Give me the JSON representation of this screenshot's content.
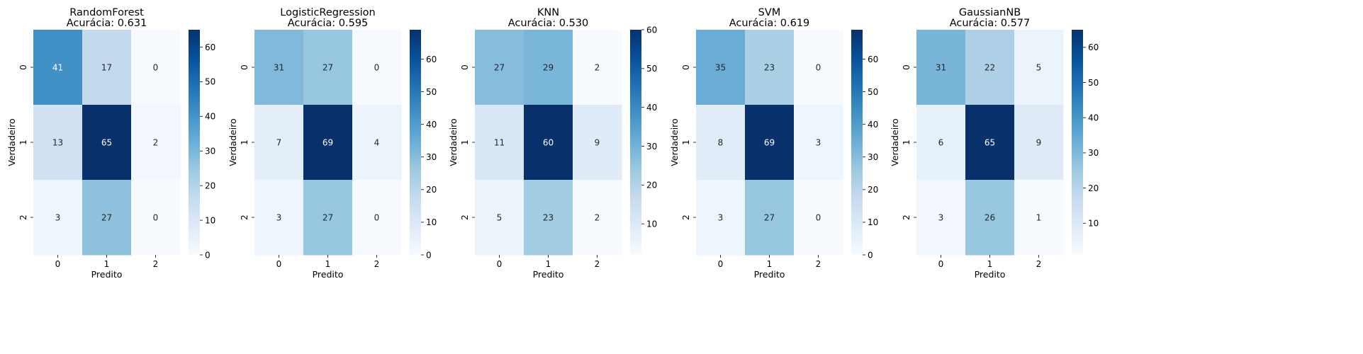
{
  "chart_data": [
    {
      "type": "heatmap",
      "title": "RandomForest",
      "subtitle": "Acurácia: 0.631",
      "xlabel": "Predito",
      "ylabel": "Verdadeiro",
      "x_ticks": [
        "0",
        "1",
        "2"
      ],
      "y_ticks": [
        "0",
        "1",
        "2"
      ],
      "matrix": [
        [
          41,
          17,
          0
        ],
        [
          13,
          65,
          2
        ],
        [
          3,
          27,
          0
        ]
      ],
      "colorbar": {
        "min": 0,
        "max": 65,
        "ticks": [
          0,
          10,
          20,
          30,
          40,
          50,
          60
        ]
      }
    },
    {
      "type": "heatmap",
      "title": "LogisticRegression",
      "subtitle": "Acurácia: 0.595",
      "xlabel": "Predito",
      "ylabel": "Verdadeiro",
      "x_ticks": [
        "0",
        "1",
        "2"
      ],
      "y_ticks": [
        "0",
        "1",
        "2"
      ],
      "matrix": [
        [
          31,
          27,
          0
        ],
        [
          7,
          69,
          4
        ],
        [
          3,
          27,
          0
        ]
      ],
      "colorbar": {
        "min": 0,
        "max": 69,
        "ticks": [
          0,
          10,
          20,
          30,
          40,
          50,
          60
        ]
      }
    },
    {
      "type": "heatmap",
      "title": "KNN",
      "subtitle": "Acurácia: 0.530",
      "xlabel": "Predito",
      "ylabel": "Verdadeiro",
      "x_ticks": [
        "0",
        "1",
        "2"
      ],
      "y_ticks": [
        "0",
        "1",
        "2"
      ],
      "matrix": [
        [
          27,
          29,
          2
        ],
        [
          11,
          60,
          9
        ],
        [
          5,
          23,
          2
        ]
      ],
      "colorbar": {
        "min": 2,
        "max": 60,
        "ticks": [
          10,
          20,
          30,
          40,
          50,
          60
        ]
      }
    },
    {
      "type": "heatmap",
      "title": "SVM",
      "subtitle": "Acurácia: 0.619",
      "xlabel": "Predito",
      "ylabel": "Verdadeiro",
      "x_ticks": [
        "0",
        "1",
        "2"
      ],
      "y_ticks": [
        "0",
        "1",
        "2"
      ],
      "matrix": [
        [
          35,
          23,
          0
        ],
        [
          8,
          69,
          3
        ],
        [
          3,
          27,
          0
        ]
      ],
      "colorbar": {
        "min": 0,
        "max": 69,
        "ticks": [
          0,
          10,
          20,
          30,
          40,
          50,
          60
        ]
      }
    },
    {
      "type": "heatmap",
      "title": "GaussianNB",
      "subtitle": "Acurácia: 0.577",
      "xlabel": "Predito",
      "ylabel": "Verdadeiro",
      "x_ticks": [
        "0",
        "1",
        "2"
      ],
      "y_ticks": [
        "0",
        "1",
        "2"
      ],
      "matrix": [
        [
          31,
          22,
          5
        ],
        [
          6,
          65,
          9
        ],
        [
          3,
          26,
          1
        ]
      ],
      "colorbar": {
        "min": 1,
        "max": 65,
        "ticks": [
          10,
          20,
          30,
          40,
          50,
          60
        ]
      }
    }
  ],
  "colormap": [
    "#f7fbff",
    "#deebf7",
    "#c6dbef",
    "#9ecae1",
    "#6baed6",
    "#4292c6",
    "#2171b5",
    "#08519c",
    "#08306b"
  ]
}
